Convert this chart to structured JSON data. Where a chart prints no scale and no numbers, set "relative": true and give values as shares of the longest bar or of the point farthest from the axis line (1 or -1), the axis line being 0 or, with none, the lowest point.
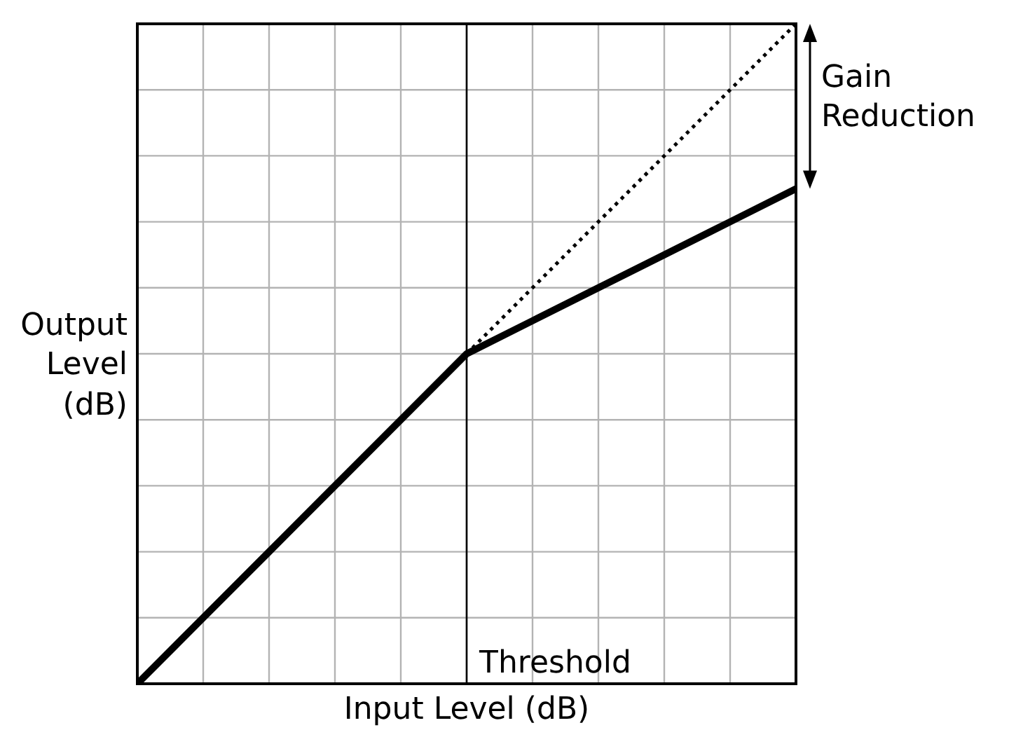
{
  "chart_data": {
    "type": "line",
    "relative": true,
    "xlabel": "Input Level (dB)",
    "ylabel": "Output Level (dB)",
    "categories": [
      null,
      null,
      null,
      null,
      null,
      null,
      null,
      null,
      null,
      null,
      null
    ],
    "series": [
      {
        "color": "#000000",
        "line_style": "solid",
        "values": [
          0,
          0.1,
          0.2,
          0.3,
          0.4,
          0.5,
          0.55,
          0.6,
          0.65,
          0.7,
          0.75
        ]
      },
      {
        "color": "#000000",
        "line_style": "dotted",
        "values": [
          null,
          null,
          null,
          null,
          null,
          0.5,
          0.6,
          0.7,
          0.8,
          0.9,
          1.0
        ]
      }
    ],
    "annotations": [
      "Gain Reduction",
      "Threshold"
    ],
    "grid": true,
    "legend": false,
    "marker": "none"
  }
}
